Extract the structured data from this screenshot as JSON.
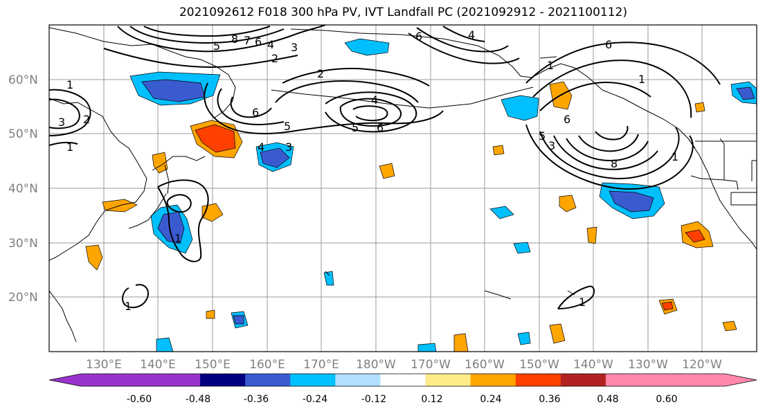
{
  "title": "2021092612 F018 300 hPa PV, IVT Landfall PC (2021092912 - 2021100112)",
  "lat_labels": [
    "60°N",
    "50°N",
    "40°N",
    "30°N",
    "20°N"
  ],
  "lon_labels": [
    "130°E",
    "140°E",
    "150°E",
    "160°E",
    "170°E",
    "180°W",
    "170°W",
    "160°W",
    "150°W",
    "140°W",
    "130°W",
    "120°W"
  ],
  "colorbar": {
    "colors": [
      "#9933cc",
      "#000080",
      "#3a5bd0",
      "#00bfff",
      "#b3e0ff",
      "#ffffff",
      "#ffeb88",
      "#ffa500",
      "#ff4000",
      "#b22222",
      "#ff88aa"
    ],
    "ticks": [
      "-0.60",
      "-0.48",
      "-0.36",
      "-0.24",
      "-0.12",
      "0.12",
      "0.24",
      "0.36",
      "0.48",
      "0.60"
    ]
  },
  "contour_labels": [
    "1",
    "2",
    "3",
    "4",
    "5",
    "6",
    "7",
    "8"
  ],
  "contours": [
    {
      "label": "1",
      "value": 1
    },
    {
      "label": "2",
      "value": 2
    },
    {
      "label": "3",
      "value": 3
    },
    {
      "label": "4",
      "value": 4
    },
    {
      "label": "5",
      "value": 5
    },
    {
      "label": "6",
      "value": 6
    },
    {
      "label": "7",
      "value": 7
    },
    {
      "label": "8",
      "value": 8
    }
  ]
}
